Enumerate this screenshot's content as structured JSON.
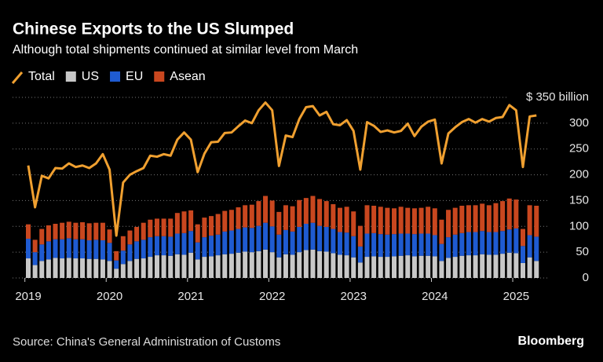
{
  "chart_data": {
    "type": "bar",
    "stacked": true,
    "title": "Chinese Exports to the US Slumped",
    "subtitle": "Although total shipments continued at similar level from March",
    "categories": [
      "2019",
      null,
      null,
      null,
      null,
      null,
      null,
      null,
      null,
      null,
      null,
      null,
      "2020",
      null,
      null,
      null,
      null,
      null,
      null,
      null,
      null,
      null,
      null,
      null,
      "2021",
      null,
      null,
      null,
      null,
      null,
      null,
      null,
      null,
      null,
      null,
      null,
      "2022",
      null,
      null,
      null,
      null,
      null,
      null,
      null,
      null,
      null,
      null,
      null,
      "2023",
      null,
      null,
      null,
      null,
      null,
      null,
      null,
      null,
      null,
      null,
      null,
      "2024",
      null,
      null,
      null,
      null,
      null,
      null,
      null,
      null,
      null,
      null,
      null,
      "2025",
      null,
      null,
      null
    ],
    "series": [
      {
        "name": "Total",
        "type": "line",
        "color": "#f0a030",
        "values": [
          218,
          137,
          198,
          193,
          213,
          212,
          222,
          215,
          218,
          213,
          222,
          240,
          210,
          82,
          185,
          200,
          207,
          213,
          237,
          235,
          240,
          237,
          268,
          282,
          268,
          205,
          241,
          263,
          264,
          281,
          282,
          294,
          305,
          300,
          325,
          340,
          325,
          217,
          276,
          273,
          308,
          331,
          333,
          315,
          322,
          298,
          296,
          306,
          285,
          210,
          302,
          295,
          283,
          286,
          282,
          285,
          299,
          275,
          293,
          303,
          307,
          222,
          280,
          292,
          302,
          308,
          301,
          308,
          303,
          310,
          312,
          335,
          325,
          215,
          313,
          315
        ]
      },
      {
        "name": "US",
        "color": "#c8c8c8",
        "values": [
          38,
          25,
          33,
          36,
          39,
          38,
          39,
          38,
          38,
          37,
          37,
          36,
          33,
          18,
          27,
          33,
          37,
          38,
          41,
          44,
          44,
          43,
          46,
          45,
          49,
          36,
          41,
          42,
          44,
          46,
          47,
          49,
          51,
          50,
          52,
          55,
          50,
          40,
          46,
          45,
          50,
          54,
          55,
          52,
          51,
          48,
          45,
          44,
          40,
          30,
          41,
          42,
          41,
          41,
          42,
          43,
          44,
          42,
          43,
          43,
          42,
          33,
          39,
          41,
          43,
          44,
          44,
          46,
          45,
          45,
          47,
          49,
          48,
          29,
          40,
          33
        ]
      },
      {
        "name": "EU",
        "color": "#1f5bd1",
        "values": [
          38,
          25,
          32,
          35,
          36,
          37,
          38,
          37,
          37,
          36,
          37,
          37,
          35,
          16,
          26,
          32,
          34,
          36,
          38,
          37,
          37,
          37,
          40,
          42,
          42,
          33,
          38,
          40,
          40,
          44,
          45,
          46,
          47,
          47,
          49,
          52,
          50,
          44,
          47,
          45,
          49,
          51,
          52,
          49,
          48,
          47,
          44,
          44,
          41,
          31,
          45,
          45,
          44,
          43,
          43,
          43,
          42,
          43,
          43,
          43,
          41,
          33,
          40,
          43,
          44,
          45,
          45,
          45,
          44,
          44,
          44,
          45,
          48,
          33,
          43,
          47
        ]
      },
      {
        "name": "Asean",
        "color": "#c9471f",
        "values": [
          28,
          24,
          30,
          31,
          30,
          32,
          32,
          32,
          33,
          33,
          33,
          34,
          26,
          18,
          28,
          27,
          28,
          33,
          34,
          34,
          34,
          35,
          40,
          42,
          40,
          35,
          38,
          38,
          40,
          40,
          40,
          42,
          43,
          45,
          48,
          52,
          50,
          44,
          48,
          49,
          52,
          50,
          52,
          52,
          50,
          48,
          47,
          50,
          48,
          40,
          55,
          53,
          53,
          52,
          50,
          52,
          50,
          50,
          50,
          52,
          52,
          47,
          53,
          52,
          53,
          52,
          52,
          53,
          52,
          56,
          58,
          60,
          56,
          33,
          58,
          60
        ]
      }
    ],
    "ylim": [
      0,
      360
    ],
    "yticks": [
      0,
      50,
      100,
      150,
      200,
      250,
      300,
      {
        "value": 350,
        "label": "$ 350 billion"
      }
    ],
    "grid": true
  },
  "source": "Source: China's General Administration of Customs",
  "logo": "Bloomberg"
}
